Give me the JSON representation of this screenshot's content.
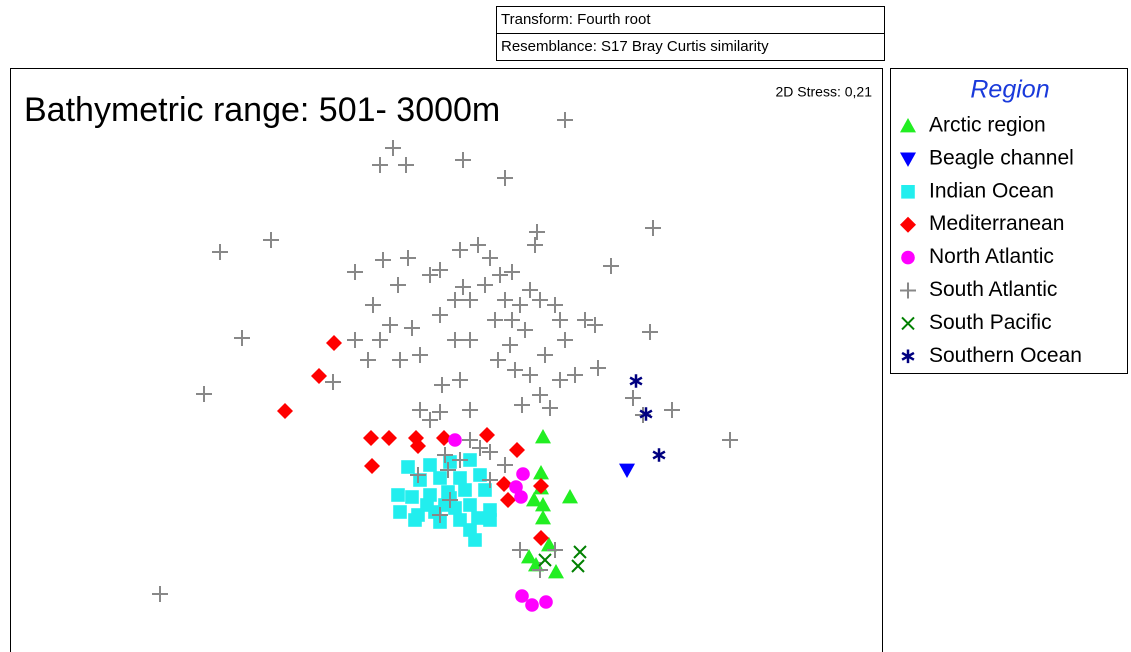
{
  "chart_data": {
    "type": "scatter",
    "title": "Bathymetric range: 501- 3000m",
    "annotation": "2D Stress: 0,21",
    "notes": [
      "Transform: Fourth root",
      "Resemblance: S17 Bray Curtis similarity"
    ],
    "legend_title": "Region",
    "legend": "right",
    "xlim": [
      10,
      882
    ],
    "ylim": [
      652,
      68
    ],
    "series": [
      {
        "name": "Arctic region",
        "color": "#22ee22",
        "marker": "triangle-up",
        "x": [
          543,
          541,
          541,
          570,
          534,
          543,
          543,
          529,
          536,
          549,
          556
        ],
        "y": [
          437,
          473,
          488,
          497,
          500,
          505,
          518,
          557,
          565,
          545,
          572
        ]
      },
      {
        "name": "Beagle channel",
        "color": "#0000ff",
        "marker": "triangle-down",
        "x": [
          627
        ],
        "y": [
          470
        ]
      },
      {
        "name": "Indian Ocean",
        "color": "#22eeee",
        "marker": "square",
        "x": [
          408,
          430,
          450,
          470,
          420,
          440,
          460,
          480,
          398,
          412,
          430,
          448,
          465,
          485,
          400,
          418,
          435,
          455,
          470,
          490,
          415,
          440,
          460,
          478,
          470,
          475,
          450,
          427,
          445,
          490
        ],
        "y": [
          467,
          465,
          462,
          460,
          480,
          478,
          478,
          475,
          495,
          497,
          495,
          492,
          490,
          490,
          512,
          515,
          512,
          508,
          505,
          510,
          520,
          522,
          520,
          518,
          530,
          540,
          498,
          505,
          505,
          520
        ]
      },
      {
        "name": "Mediterranean",
        "color": "#ff0000",
        "marker": "diamond",
        "x": [
          334,
          319,
          285,
          371,
          389,
          416,
          418,
          444,
          487,
          517,
          372,
          504,
          541,
          508,
          541
        ],
        "y": [
          343,
          376,
          411,
          438,
          438,
          438,
          446,
          438,
          435,
          450,
          466,
          484,
          486,
          500,
          538
        ]
      },
      {
        "name": "North Atlantic",
        "color": "#ff00ff",
        "marker": "circle",
        "x": [
          455,
          523,
          516,
          521,
          522,
          532,
          546
        ],
        "y": [
          440,
          474,
          487,
          497,
          596,
          605,
          602
        ]
      },
      {
        "name": "South Atlantic",
        "color": "#888888",
        "marker": "plus",
        "x": [
          565,
          393,
          380,
          406,
          463,
          505,
          220,
          271,
          355,
          383,
          408,
          398,
          440,
          460,
          478,
          537,
          535,
          653,
          611,
          490,
          512,
          242,
          204,
          160,
          333,
          368,
          390,
          412,
          455,
          470,
          440,
          505,
          520,
          540,
          555,
          585,
          595,
          565,
          525,
          510,
          498,
          515,
          530,
          545,
          560,
          575,
          598,
          540,
          522,
          550,
          455,
          442,
          460,
          420,
          440,
          470,
          430,
          470,
          490,
          505,
          490,
          480,
          445,
          460,
          418,
          448,
          450,
          440,
          650,
          730,
          672,
          633,
          643,
          355,
          380,
          400,
          373,
          463,
          430,
          485,
          495,
          512,
          530,
          470,
          420,
          520,
          540,
          555,
          500,
          560
        ],
        "y": [
          120,
          148,
          165,
          165,
          160,
          178,
          252,
          240,
          272,
          260,
          258,
          285,
          270,
          250,
          245,
          232,
          245,
          228,
          266,
          258,
          272,
          338,
          394,
          594,
          382,
          360,
          325,
          328,
          300,
          300,
          315,
          300,
          305,
          300,
          305,
          320,
          325,
          340,
          330,
          345,
          360,
          370,
          375,
          355,
          380,
          375,
          368,
          395,
          405,
          408,
          340,
          385,
          380,
          410,
          412,
          410,
          420,
          440,
          452,
          465,
          480,
          448,
          455,
          460,
          475,
          470,
          500,
          515,
          332,
          440,
          410,
          398,
          415,
          340,
          340,
          360,
          305,
          287,
          275,
          285,
          320,
          320,
          290,
          340,
          355,
          550,
          570,
          550,
          275,
          320
        ]
      },
      {
        "name": "South Pacific",
        "color": "#008000",
        "marker": "x",
        "x": [
          545,
          580,
          578
        ],
        "y": [
          560,
          552,
          566
        ]
      },
      {
        "name": "Southern Ocean",
        "color": "#000080",
        "marker": "asterisk",
        "x": [
          636,
          646,
          659
        ],
        "y": [
          381,
          414,
          455
        ]
      }
    ]
  }
}
